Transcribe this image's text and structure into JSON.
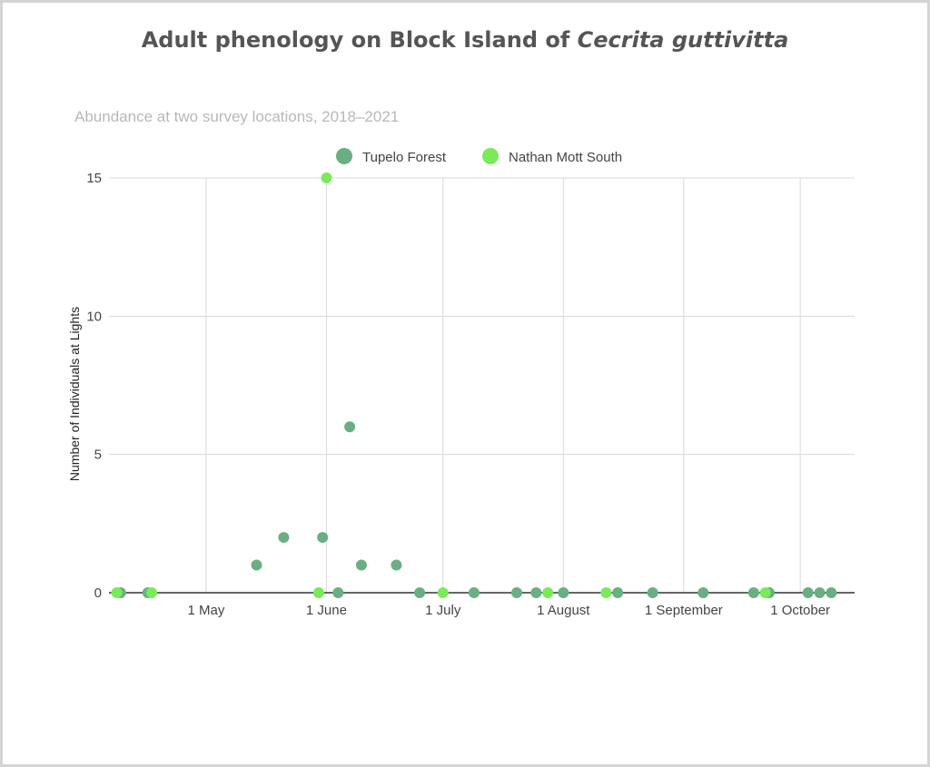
{
  "title_prefix": "Adult phenology on Block Island of ",
  "title_species": "Cecrita guttivitta",
  "chart_data": {
    "type": "scatter",
    "title": "Adult phenology on Block Island of Cecrita guttivitta",
    "subtitle": "Abundance at two survey locations, 2018–2021",
    "xlabel": "",
    "ylabel": "Number of Individuals at Lights",
    "x_ticks": [
      "1 May",
      "1 June",
      "1 July",
      "1 August",
      "1 September",
      "1 October"
    ],
    "y_ticks": [
      "0",
      "5",
      "10",
      "15"
    ],
    "ylim": [
      0,
      15
    ],
    "xlim": [
      "2018-04-06",
      "2018-10-15"
    ],
    "grid": true,
    "legend_position": "top",
    "series": [
      {
        "name": "Tupelo Forest",
        "color": "#6aaf84",
        "points": [
          {
            "x": "2018-04-09",
            "y": 0
          },
          {
            "x": "2018-04-16",
            "y": 0
          },
          {
            "x": "2018-05-14",
            "y": 1
          },
          {
            "x": "2018-05-21",
            "y": 2
          },
          {
            "x": "2018-05-31",
            "y": 2
          },
          {
            "x": "2018-06-04",
            "y": 0
          },
          {
            "x": "2018-06-07",
            "y": 6
          },
          {
            "x": "2018-06-10",
            "y": 1
          },
          {
            "x": "2018-06-19",
            "y": 1
          },
          {
            "x": "2018-06-25",
            "y": 0
          },
          {
            "x": "2018-07-09",
            "y": 0
          },
          {
            "x": "2018-07-20",
            "y": 0
          },
          {
            "x": "2018-07-25",
            "y": 0
          },
          {
            "x": "2018-08-01",
            "y": 0
          },
          {
            "x": "2018-08-15",
            "y": 0
          },
          {
            "x": "2018-08-24",
            "y": 0
          },
          {
            "x": "2018-09-06",
            "y": 0
          },
          {
            "x": "2018-09-19",
            "y": 0
          },
          {
            "x": "2018-09-23",
            "y": 0
          },
          {
            "x": "2018-10-03",
            "y": 0
          },
          {
            "x": "2018-10-06",
            "y": 0
          },
          {
            "x": "2018-10-09",
            "y": 0
          }
        ]
      },
      {
        "name": "Nathan Mott South",
        "color": "#7aea5a",
        "points": [
          {
            "x": "2018-04-08",
            "y": 0
          },
          {
            "x": "2018-04-17",
            "y": 0
          },
          {
            "x": "2018-05-30",
            "y": 0
          },
          {
            "x": "2018-06-01",
            "y": 15
          },
          {
            "x": "2018-07-01",
            "y": 0
          },
          {
            "x": "2018-07-28",
            "y": 0
          },
          {
            "x": "2018-08-12",
            "y": 0
          },
          {
            "x": "2018-09-22",
            "y": 0
          }
        ]
      }
    ]
  }
}
